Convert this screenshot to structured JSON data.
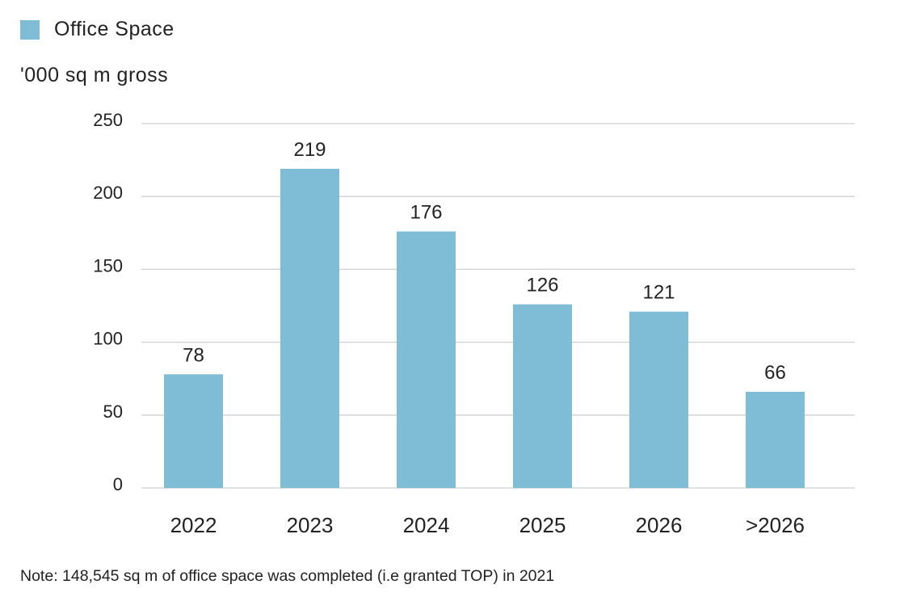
{
  "chart_data": {
    "type": "bar",
    "legend": [
      "Office Space"
    ],
    "legend_position": "top-left",
    "ylabel": "'000 sq m gross",
    "xlabel": "",
    "categories": [
      "2022",
      "2023",
      "2024",
      "2025",
      "2026",
      ">2026"
    ],
    "series": [
      {
        "name": "Office Space",
        "values": [
          78,
          219,
          176,
          126,
          121,
          66
        ]
      }
    ],
    "ylim": [
      0,
      250
    ],
    "yticks": [
      0,
      50,
      100,
      150,
      200,
      250
    ],
    "grid": true,
    "data_labels": true,
    "note": "Note: 148,545 sq m of office space was completed (i.e granted TOP) in 2021"
  },
  "colors": {
    "bar": "#7fbcd6",
    "grid": "#cfcfcf",
    "text": "#222222"
  }
}
